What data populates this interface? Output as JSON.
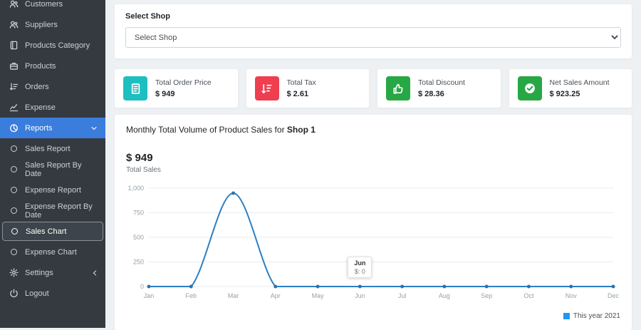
{
  "sidebar": {
    "items": [
      {
        "label": "Customers",
        "icon": "users-icon"
      },
      {
        "label": "Suppliers",
        "icon": "user-group-icon"
      },
      {
        "label": "Products Category",
        "icon": "category-icon"
      },
      {
        "label": "Products",
        "icon": "briefcase-icon"
      },
      {
        "label": "Orders",
        "icon": "sort-icon"
      },
      {
        "label": "Expense",
        "icon": "chart-line-icon"
      },
      {
        "label": "Reports",
        "icon": "pie-chart-icon",
        "active": true,
        "chevron": "down"
      },
      {
        "label": "Sales Report",
        "icon": "circle-icon",
        "sub": true
      },
      {
        "label": "Sales Report By Date",
        "icon": "circle-icon",
        "sub": true
      },
      {
        "label": "Expense Report",
        "icon": "circle-icon",
        "sub": true
      },
      {
        "label": "Expense Report By Date",
        "icon": "circle-icon",
        "sub": true
      },
      {
        "label": "Sales Chart",
        "icon": "circle-icon",
        "sub": true,
        "selected": true
      },
      {
        "label": "Expense Chart",
        "icon": "circle-icon",
        "sub": true
      },
      {
        "label": "Settings",
        "icon": "gear-icon",
        "chevron": "left"
      },
      {
        "label": "Logout",
        "icon": "power-icon"
      }
    ],
    "active_color": "#3b7ddd"
  },
  "shop_select": {
    "label": "Select Shop",
    "selected_option": "Select Shop"
  },
  "stats": [
    {
      "title": "Total Order Price",
      "value": "$ 949",
      "icon": "receipt-icon",
      "color": "#1dbfc1"
    },
    {
      "title": "Total Tax",
      "value": "$ 2.61",
      "icon": "sort-numeric-icon",
      "color": "#ee3e50"
    },
    {
      "title": "Total Discount",
      "value": "$ 28.36",
      "icon": "thumbs-up-icon",
      "color": "#27a844"
    },
    {
      "title": "Net Sales Amount",
      "value": "$ 923.25",
      "icon": "check-circle-icon",
      "color": "#27a844"
    }
  ],
  "chart_card": {
    "title_prefix": "Monthly Total Volume of Product Sales for ",
    "shop": "Shop 1",
    "total": "$ 949",
    "total_label": "Total Sales",
    "legend": "This year 2021"
  },
  "chart_data": {
    "type": "line",
    "x": [
      "Jan",
      "Feb",
      "Mar",
      "Apr",
      "May",
      "Jun",
      "Jul",
      "Aug",
      "Sep",
      "Oct",
      "Nov",
      "Dec"
    ],
    "series": [
      {
        "name": "This year 2021",
        "values": [
          0,
          0,
          949,
          0,
          0,
          0,
          0,
          0,
          0,
          0,
          0,
          0
        ]
      }
    ],
    "title": "Monthly Total Volume of Product Sales for Shop 1",
    "xlabel": "",
    "ylabel": "",
    "ylim": [
      0,
      1000
    ],
    "yticks": [
      0,
      250,
      500,
      750,
      1000
    ],
    "ytick_labels": [
      "0",
      "250",
      "500",
      "750",
      "1,000"
    ],
    "grid": true,
    "legend_position": "bottom-right",
    "line_color": "#2d7fc1",
    "point_color": "#2d72ad",
    "legend_color": "#2196f3",
    "tooltip": {
      "label": "Jun",
      "value": "$: 0",
      "index": 5
    }
  }
}
